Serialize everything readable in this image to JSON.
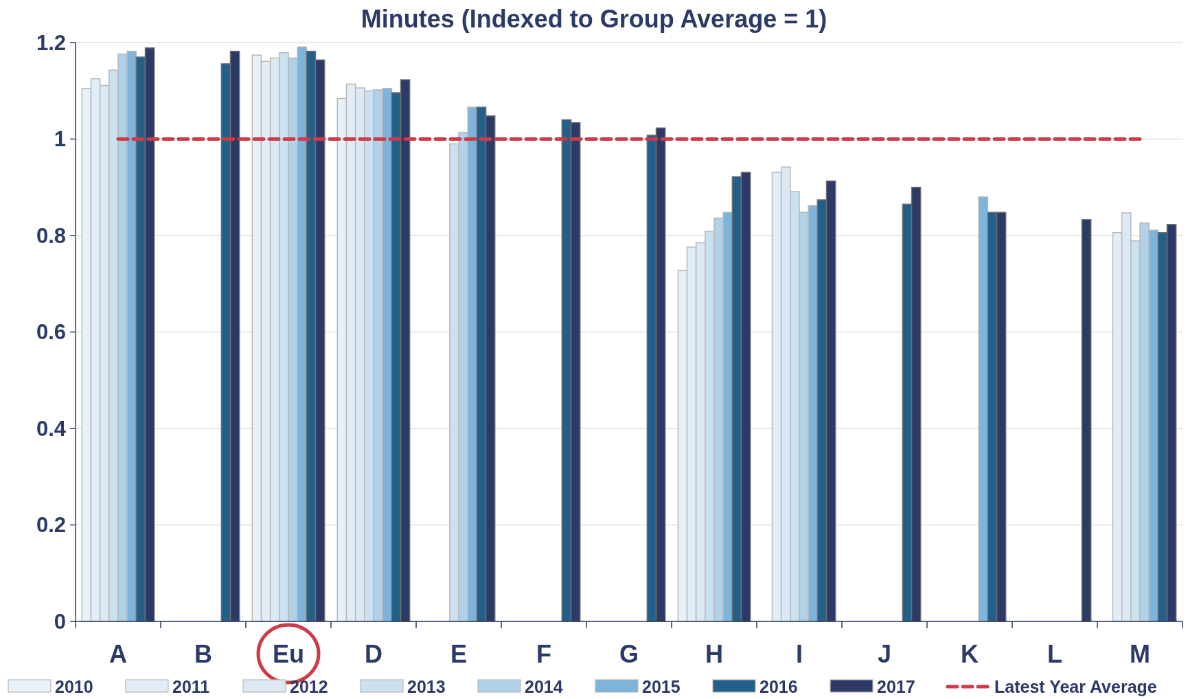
{
  "chart_data": {
    "type": "bar",
    "title": "Minutes (Indexed to Group Average = 1)",
    "categories": [
      "A",
      "B",
      "Eu",
      "D",
      "E",
      "F",
      "G",
      "H",
      "I",
      "J",
      "K",
      "L",
      "M"
    ],
    "series": [
      {
        "name": "2010",
        "color": "#e8f1f9",
        "values": [
          1.105,
          null,
          1.174,
          1.084,
          null,
          null,
          null,
          0.728,
          null,
          null,
          null,
          null,
          null
        ]
      },
      {
        "name": "2011",
        "color": "#e2edf7",
        "values": [
          1.125,
          null,
          1.161,
          1.114,
          null,
          null,
          null,
          0.776,
          0.931,
          null,
          null,
          null,
          0.806
        ]
      },
      {
        "name": "2012",
        "color": "#dce9f4",
        "values": [
          1.111,
          null,
          1.168,
          1.106,
          null,
          null,
          null,
          0.785,
          0.942,
          null,
          null,
          null,
          0.847
        ]
      },
      {
        "name": "2013",
        "color": "#cce1f0",
        "values": [
          1.143,
          null,
          1.179,
          1.1,
          0.99,
          null,
          null,
          0.809,
          0.891,
          null,
          null,
          null,
          0.789
        ]
      },
      {
        "name": "2014",
        "color": "#b0d1ea",
        "values": [
          1.176,
          null,
          1.168,
          1.102,
          1.014,
          null,
          null,
          0.836,
          0.848,
          null,
          null,
          null,
          0.826
        ]
      },
      {
        "name": "2015",
        "color": "#7db4dc",
        "values": [
          1.182,
          null,
          1.191,
          1.105,
          1.066,
          null,
          null,
          0.848,
          0.862,
          null,
          0.88,
          null,
          0.811
        ]
      },
      {
        "name": "2016",
        "color": "#236089",
        "values": [
          1.17,
          1.156,
          1.182,
          1.096,
          1.066,
          1.04,
          1.008,
          0.922,
          0.874,
          0.865,
          0.848,
          null,
          0.806
        ]
      },
      {
        "name": "2017",
        "color": "#2b3a66",
        "values": [
          1.189,
          1.182,
          1.164,
          1.123,
          1.048,
          1.034,
          1.023,
          0.931,
          0.913,
          0.9,
          0.848,
          0.833,
          0.823
        ]
      }
    ],
    "ylim": [
      0,
      1.2
    ],
    "yticks": [
      0,
      0.2,
      0.4,
      0.6,
      0.8,
      1,
      1.2
    ],
    "grid": "y",
    "legend": "bottom",
    "ref_lines": [
      {
        "axis": "y",
        "value": 1,
        "label": "Latest Year Average",
        "color": "#cc3b47",
        "line_style": "dashed"
      }
    ]
  }
}
